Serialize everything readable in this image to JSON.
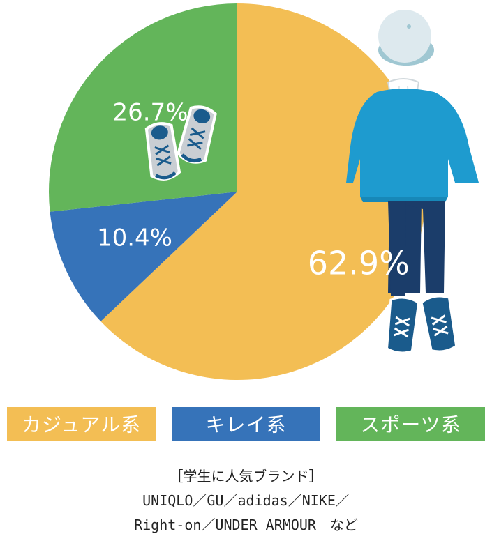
{
  "chart_data": {
    "type": "pie",
    "slices": [
      {
        "label": "カジュアル系",
        "value": 62.9,
        "value_label": "62.9%",
        "color": "#F3BE54"
      },
      {
        "label": "キレイ系",
        "value": 10.4,
        "value_label": "10.4%",
        "color": "#3673B9"
      },
      {
        "label": "スポーツ系",
        "value": 26.7,
        "value_label": "26.7%",
        "color": "#63B55A"
      }
    ],
    "start": "12 o'clock",
    "direction": "clockwise"
  },
  "legend": {
    "casual": "カジュアル系",
    "kirei": "キレイ系",
    "sports": "スポーツ系"
  },
  "brands": {
    "heading": "［学生に人気ブランド］",
    "line1": "UNIQLO／GU／adidas／NIKE／",
    "line2": "Right-on／UNDER ARMOUR　など"
  },
  "colors": {
    "hoodie": "#1E9BCF",
    "pants": "#1B3D6A",
    "cap": "#DDE9EE",
    "shoes_dark": "#1A5B8C",
    "sneaker_grey": "#C9CED3"
  },
  "illustrations": [
    "casual-outfit-illustration",
    "sneakers-illustration"
  ]
}
